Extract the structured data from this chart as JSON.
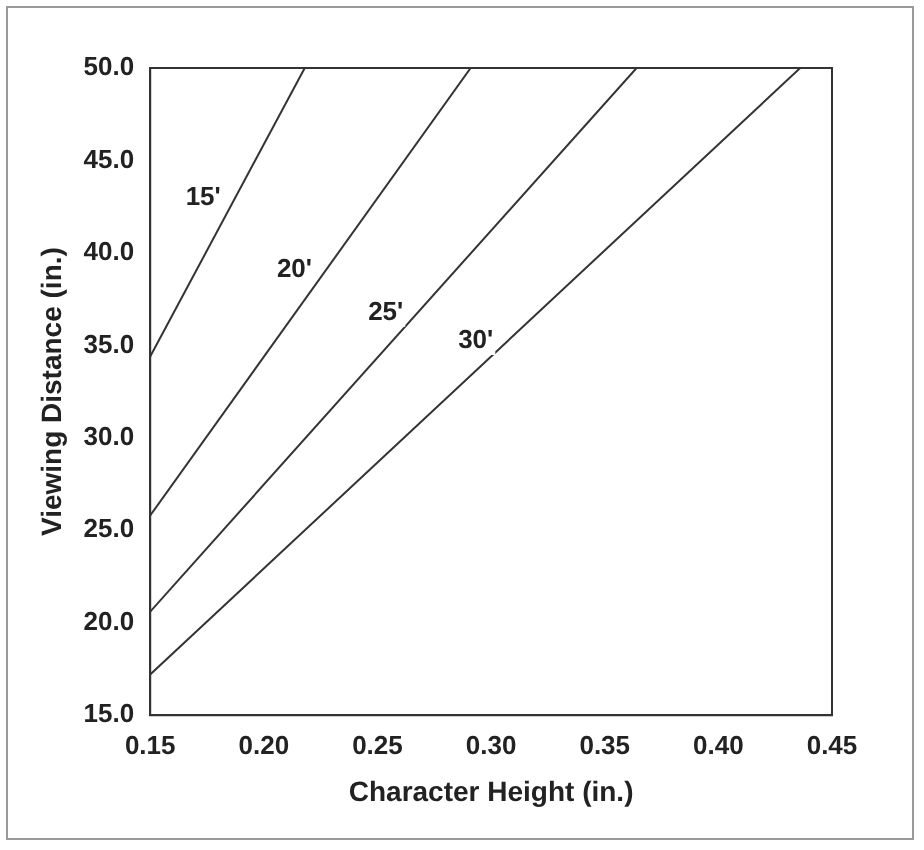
{
  "chart_data": {
    "type": "line",
    "xlabel": "Character Height (in.)",
    "ylabel": "Viewing Distance (in.)",
    "xlim": [
      0.15,
      0.45
    ],
    "xticks": [
      {
        "value": 0.15,
        "label": "0.15"
      },
      {
        "value": 0.2,
        "label": "0.20"
      },
      {
        "value": 0.25,
        "label": "0.25"
      },
      {
        "value": 0.3,
        "label": "0.30"
      },
      {
        "value": 0.35,
        "label": "0.35"
      },
      {
        "value": 0.4,
        "label": "0.40"
      },
      {
        "value": 0.45,
        "label": "0.45"
      }
    ],
    "ylim": [
      15,
      50
    ],
    "yticks": [
      {
        "value": 15,
        "label": "15.0"
      },
      {
        "value": 20,
        "label": "20.0"
      },
      {
        "value": 25,
        "label": "25.0"
      },
      {
        "value": 30,
        "label": "30.0"
      },
      {
        "value": 35,
        "label": "35.0"
      },
      {
        "value": 40,
        "label": "40.0"
      },
      {
        "value": 45,
        "label": "45.0"
      },
      {
        "value": 50,
        "label": "50.0"
      }
    ],
    "series": [
      {
        "name": "15'",
        "color": "#333333",
        "x": [
          0.15,
          0.218
        ],
        "values": [
          34.4,
          50
        ]
      },
      {
        "name": "20'",
        "color": "#333333",
        "x": [
          0.15,
          0.291
        ],
        "values": [
          25.8,
          50
        ]
      },
      {
        "name": "25'",
        "color": "#333333",
        "x": [
          0.15,
          0.364
        ],
        "values": [
          20.6,
          50
        ]
      },
      {
        "name": "30'",
        "color": "#333333",
        "x": [
          0.15,
          0.436
        ],
        "values": [
          17.2,
          50
        ]
      }
    ],
    "grid": false,
    "legend": false,
    "marker": "none",
    "line_style": "solid"
  }
}
